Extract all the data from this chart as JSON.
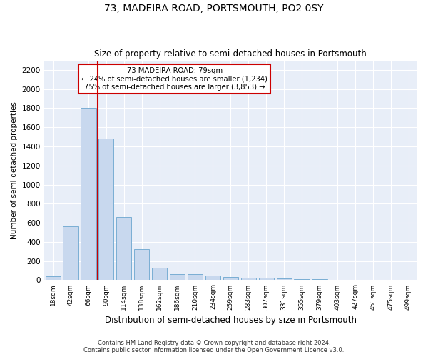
{
  "title": "73, MADEIRA ROAD, PORTSMOUTH, PO2 0SY",
  "subtitle": "Size of property relative to semi-detached houses in Portsmouth",
  "xlabel": "Distribution of semi-detached houses by size in Portsmouth",
  "ylabel": "Number of semi-detached properties",
  "categories": [
    "18sqm",
    "42sqm",
    "66sqm",
    "90sqm",
    "114sqm",
    "138sqm",
    "162sqm",
    "186sqm",
    "210sqm",
    "234sqm",
    "259sqm",
    "283sqm",
    "307sqm",
    "331sqm",
    "355sqm",
    "379sqm",
    "403sqm",
    "427sqm",
    "451sqm",
    "475sqm",
    "499sqm"
  ],
  "values": [
    40,
    560,
    1800,
    1480,
    660,
    325,
    130,
    65,
    60,
    50,
    35,
    27,
    22,
    15,
    12,
    8,
    5,
    4,
    3,
    2,
    1
  ],
  "bar_color": "#c8d8ee",
  "bar_edge_color": "#7aaed4",
  "background_color": "#e8eef8",
  "grid_color": "#ffffff",
  "red_line_color": "#cc0000",
  "annotation_title": "73 MADEIRA ROAD: 79sqm",
  "annotation_line1": "← 24% of semi-detached houses are smaller (1,234)",
  "annotation_line2": "75% of semi-detached houses are larger (3,853) →",
  "annotation_box_color": "#ffffff",
  "annotation_border_color": "#cc0000",
  "footer1": "Contains HM Land Registry data © Crown copyright and database right 2024.",
  "footer2": "Contains public sector information licensed under the Open Government Licence v3.0.",
  "ylim": [
    0,
    2300
  ],
  "yticks": [
    0,
    200,
    400,
    600,
    800,
    1000,
    1200,
    1400,
    1600,
    1800,
    2000,
    2200
  ],
  "fig_width": 6.0,
  "fig_height": 5.0,
  "dpi": 100
}
